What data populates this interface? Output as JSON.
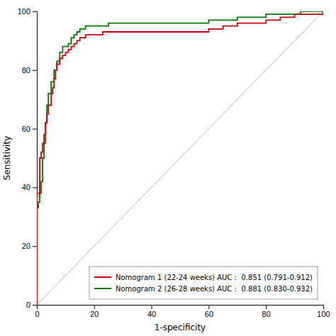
{
  "chart_data": {
    "type": "line",
    "xlabel": "1-specificity",
    "ylabel": "Sensitivity",
    "xlim": [
      0,
      100
    ],
    "ylim": [
      0,
      100
    ],
    "xticks": [
      0,
      20,
      40,
      60,
      80,
      100
    ],
    "yticks": [
      0,
      20,
      40,
      60,
      80,
      100
    ],
    "grid": false,
    "legend": "lower right",
    "series": [
      {
        "name": "Nomogram 1  (22-24 weeks)  AUC： 0.851  (0.791-0.912)",
        "color": "#cc0000",
        "line_style": "steps",
        "x": [
          0,
          0,
          0,
          0,
          1,
          1,
          1,
          1.5,
          1.5,
          2,
          2,
          2.5,
          2.5,
          3,
          3,
          3.5,
          3.5,
          4,
          4,
          5,
          5,
          5.5,
          5.5,
          6,
          6,
          6.5,
          6.5,
          7,
          7,
          8,
          8,
          9,
          9,
          10,
          11,
          12,
          13,
          14,
          15,
          17,
          19,
          21,
          23,
          25,
          30,
          35,
          40,
          45,
          50,
          60,
          65,
          70,
          80,
          85,
          90,
          95,
          100
        ],
        "values": [
          0,
          5,
          20,
          38,
          38,
          40,
          50,
          50,
          52,
          52,
          55,
          55,
          58,
          58,
          62,
          62,
          65,
          65,
          68,
          68,
          72,
          72,
          74,
          74,
          77,
          77,
          80,
          80,
          82,
          82,
          84,
          84,
          85,
          86,
          87,
          88,
          89,
          90,
          91,
          92,
          92,
          92,
          93,
          93,
          93,
          93,
          93,
          93,
          93,
          94,
          95,
          96,
          97,
          98,
          99,
          99,
          100
        ]
      },
      {
        "name": "Nomogram 2  (26-28 weeks)  AUC： 0.881  (0.830-0.932)",
        "color": "#007700",
        "line_style": "steps",
        "x": [
          0,
          0,
          0,
          0,
          0.5,
          0.5,
          1,
          1,
          1.5,
          1.5,
          2,
          2,
          2.5,
          2.5,
          3,
          3,
          3.5,
          3.5,
          4,
          4,
          5,
          5,
          6,
          6,
          7,
          7,
          8,
          8,
          9,
          9,
          10,
          11,
          12,
          13,
          14,
          15,
          17,
          19,
          21,
          23,
          25,
          30,
          35,
          40,
          45,
          55,
          60,
          65,
          70,
          75,
          80,
          85,
          88,
          92,
          95,
          100
        ],
        "values": [
          0,
          10,
          20,
          33,
          33,
          35,
          35,
          38,
          38,
          42,
          42,
          50,
          50,
          55,
          55,
          62,
          62,
          68,
          68,
          72,
          72,
          76,
          76,
          80,
          80,
          83,
          83,
          86,
          86,
          88,
          88,
          89,
          91,
          92,
          93,
          94,
          95,
          95,
          95,
          95,
          96,
          96,
          96,
          96,
          96,
          96,
          97,
          97,
          98,
          98,
          99,
          99,
          99,
          100,
          100,
          100
        ]
      },
      {
        "color": "#b0b0b0",
        "x": [
          0,
          100
        ],
        "values": [
          0,
          100
        ]
      }
    ]
  }
}
